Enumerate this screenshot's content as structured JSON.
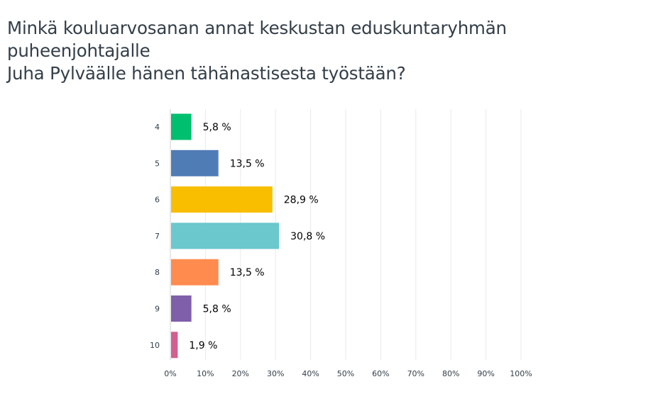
{
  "question": {
    "line1": "Minkä kouluarvosanan annat keskustan eduskuntaryhmän puheenjohtajalle",
    "line2": "Juha Pylväälle hänen tähänastisesta työstään?"
  },
  "chart_data": {
    "type": "bar",
    "orientation": "horizontal",
    "categories": [
      "4",
      "5",
      "6",
      "7",
      "8",
      "9",
      "10"
    ],
    "values": [
      5.8,
      13.5,
      28.9,
      30.8,
      13.5,
      5.8,
      1.9
    ],
    "data_labels": [
      "5,8 %",
      "13,5 %",
      "28,9 %",
      "30,8 %",
      "13,5 %",
      "5,8 %",
      "1,9 %"
    ],
    "colors": [
      "#00bf6f",
      "#507cb6",
      "#f9be00",
      "#6bc8cd",
      "#ff8b4f",
      "#7f5fa9",
      "#d25f90"
    ],
    "xlim": [
      0,
      100
    ],
    "x_ticks": [
      "0%",
      "10%",
      "20%",
      "30%",
      "40%",
      "50%",
      "60%",
      "70%",
      "80%",
      "90%",
      "100%"
    ],
    "grid": true,
    "gridline_color": "#eaeaea"
  }
}
